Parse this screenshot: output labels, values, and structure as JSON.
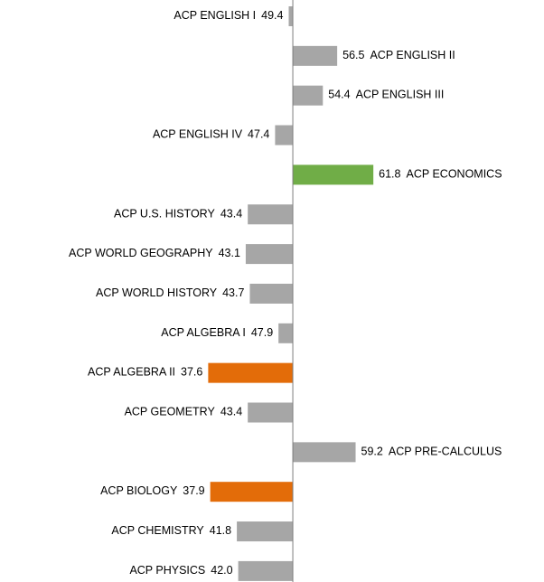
{
  "chart_data": {
    "type": "bar",
    "orientation": "horizontal",
    "categories": [
      "ACP ENGLISH I",
      "ACP ENGLISH II",
      "ACP ENGLISH III",
      "ACP ENGLISH IV",
      "ACP ECONOMICS",
      "ACP U.S. HISTORY",
      "ACP WORLD GEOGRAPHY",
      "ACP WORLD HISTORY",
      "ACP ALGEBRA I",
      "ACP ALGEBRA II",
      "ACP GEOMETRY",
      "ACP PRE-CALCULUS",
      "ACP BIOLOGY",
      "ACP CHEMISTRY",
      "ACP PHYSICS"
    ],
    "values": [
      49.4,
      56.5,
      54.4,
      47.4,
      61.8,
      43.4,
      43.1,
      43.7,
      47.9,
      37.6,
      43.4,
      59.2,
      37.9,
      41.8,
      42.0
    ],
    "value_labels": [
      "49.4",
      "56.5",
      "54.4",
      "47.4",
      "61.8",
      "43.4",
      "43.1",
      "43.7",
      "47.9",
      "37.6",
      "43.4",
      "59.2",
      "37.9",
      "41.8",
      "42.0"
    ],
    "colors": [
      "#a6a6a6",
      "#a6a6a6",
      "#a6a6a6",
      "#a6a6a6",
      "#70ad47",
      "#a6a6a6",
      "#a6a6a6",
      "#a6a6a6",
      "#a6a6a6",
      "#e36c09",
      "#a6a6a6",
      "#a6a6a6",
      "#e36c09",
      "#a6a6a6",
      "#a6a6a6"
    ],
    "baseline": 50,
    "xlim": [
      7.1,
      86.8
    ]
  }
}
